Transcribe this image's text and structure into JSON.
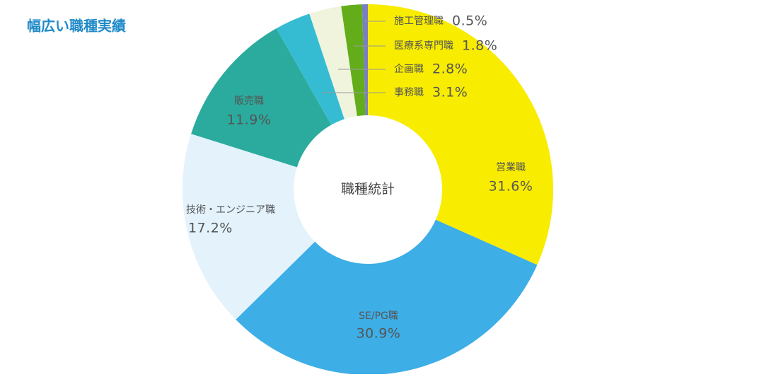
{
  "chart_data": {
    "type": "donut",
    "title": "幅広い職種実績",
    "center_label": "職種統計",
    "categories": [
      "営業職",
      "SE/PG職",
      "技術・エンジニア職",
      "販売職",
      "事務職",
      "企画職",
      "医療系専門職",
      "施工管理職"
    ],
    "values": [
      31.6,
      30.9,
      17.2,
      11.9,
      3.1,
      2.8,
      1.8,
      0.5
    ],
    "value_labels": [
      "31.6%",
      "30.9%",
      "17.2%",
      "11.9%",
      "3.1%",
      "2.8%",
      "1.8%",
      "0.5%"
    ],
    "colors": [
      "#f8ec00",
      "#3daee6",
      "#e3f2fb",
      "#2aab9d",
      "#36bcd2",
      "#f0f4dc",
      "#63ad1a",
      "#7b7fbf"
    ]
  }
}
